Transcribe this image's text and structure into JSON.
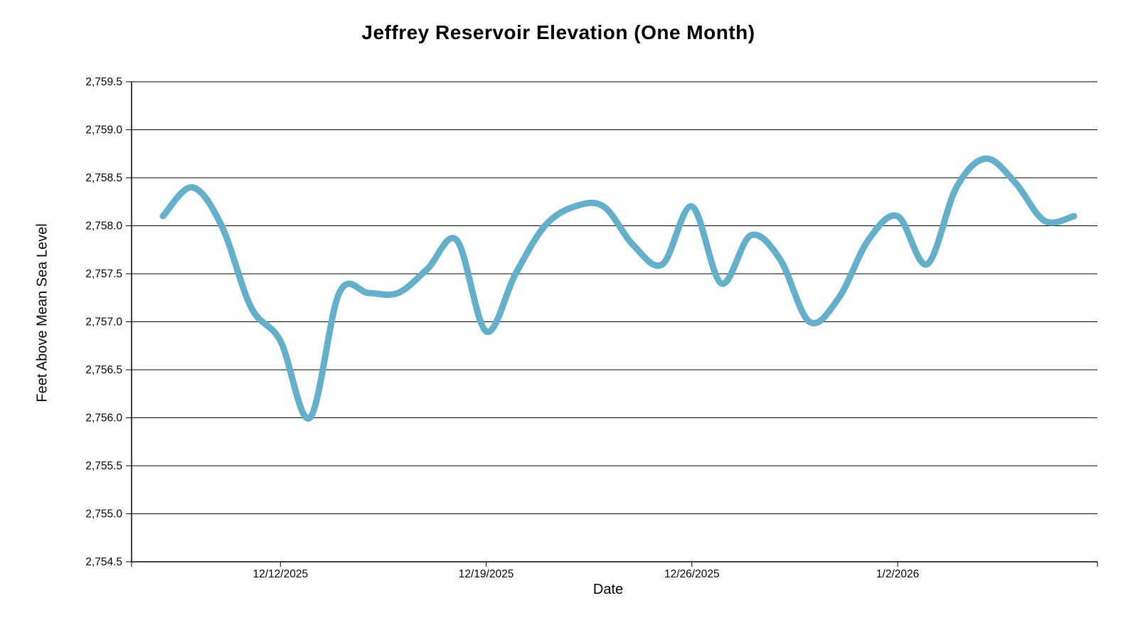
{
  "chart_data": {
    "type": "line",
    "title": "Jeffrey Reservoir Elevation (One Month)",
    "xlabel": "Date",
    "ylabel": "Feet Above Mean Sea Level",
    "x_dates": [
      "12/8/2025",
      "12/9/2025",
      "12/10/2025",
      "12/11/2025",
      "12/12/2025",
      "12/13/2025",
      "12/14/2025",
      "12/15/2025",
      "12/16/2025",
      "12/17/2025",
      "12/18/2025",
      "12/19/2025",
      "12/20/2025",
      "12/21/2025",
      "12/22/2025",
      "12/23/2025",
      "12/24/2025",
      "12/25/2025",
      "12/26/2025",
      "12/27/2025",
      "12/28/2025",
      "12/29/2025",
      "12/30/2025",
      "12/31/2025",
      "1/1/2026",
      "1/2/2026",
      "1/3/2026",
      "1/4/2026",
      "1/5/2026",
      "1/6/2026",
      "1/7/2026",
      "1/8/2026"
    ],
    "values": [
      2758.1,
      2758.4,
      2758.0,
      2757.15,
      2756.8,
      2756.0,
      2757.3,
      2757.3,
      2757.3,
      2757.55,
      2757.85,
      2756.9,
      2757.5,
      2758.0,
      2758.2,
      2758.2,
      2757.8,
      2757.6,
      2758.2,
      2757.4,
      2757.9,
      2757.65,
      2757.0,
      2757.25,
      2757.85,
      2758.1,
      2757.6,
      2758.4,
      2758.7,
      2758.45,
      2758.05,
      2758.1
    ],
    "x_tick_labels": [
      "12/12/2025",
      "12/19/2025",
      "12/26/2025",
      "1/2/2026"
    ],
    "x_tick_day_indices": [
      4,
      11,
      18,
      25
    ],
    "y_tick_labels": [
      "2,759.5",
      "2,759.0",
      "2,758.5",
      "2,758.0",
      "2,757.5",
      "2,757.0",
      "2,756.5",
      "2,756.0",
      "2,755.5",
      "2,755.0",
      "2,754.5"
    ],
    "y_tick_values": [
      2759.5,
      2759.0,
      2758.5,
      2758.0,
      2757.5,
      2757.0,
      2756.5,
      2756.0,
      2755.5,
      2755.0,
      2754.5
    ],
    "ylim": [
      2754.5,
      2759.5
    ],
    "line_color": "#62B0CC",
    "axis_color": "#000000",
    "grid": "horizontal",
    "smooth": true,
    "legend": "none"
  }
}
